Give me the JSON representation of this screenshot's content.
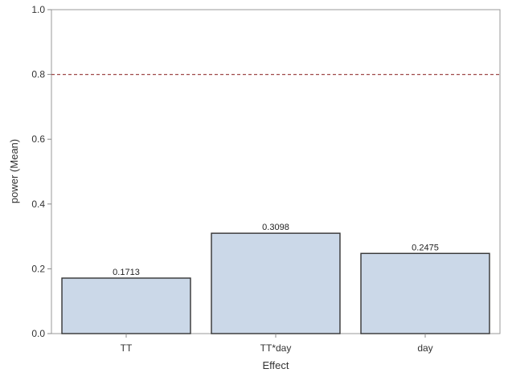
{
  "chart_data": {
    "type": "bar",
    "categories": [
      "TT",
      "TT*day",
      "day"
    ],
    "values": [
      0.1713,
      0.3098,
      0.2475
    ],
    "data_labels": [
      "0.1713",
      "0.3098",
      "0.2475"
    ],
    "xlabel": "Effect",
    "ylabel": "power (Mean)",
    "ylim": [
      0,
      1.0
    ],
    "yticks": [
      0.0,
      0.2,
      0.4,
      0.6,
      0.8,
      1.0
    ],
    "ytick_labels": [
      "0.0",
      "0.2",
      "0.4",
      "0.6",
      "0.8",
      "1.0"
    ],
    "reference_line": 0.8,
    "grid": false,
    "colors": {
      "bar_fill": "#cbd8e8",
      "bar_stroke": "#333333",
      "reference_line": "#a04a4a",
      "axis": "#888888"
    }
  }
}
